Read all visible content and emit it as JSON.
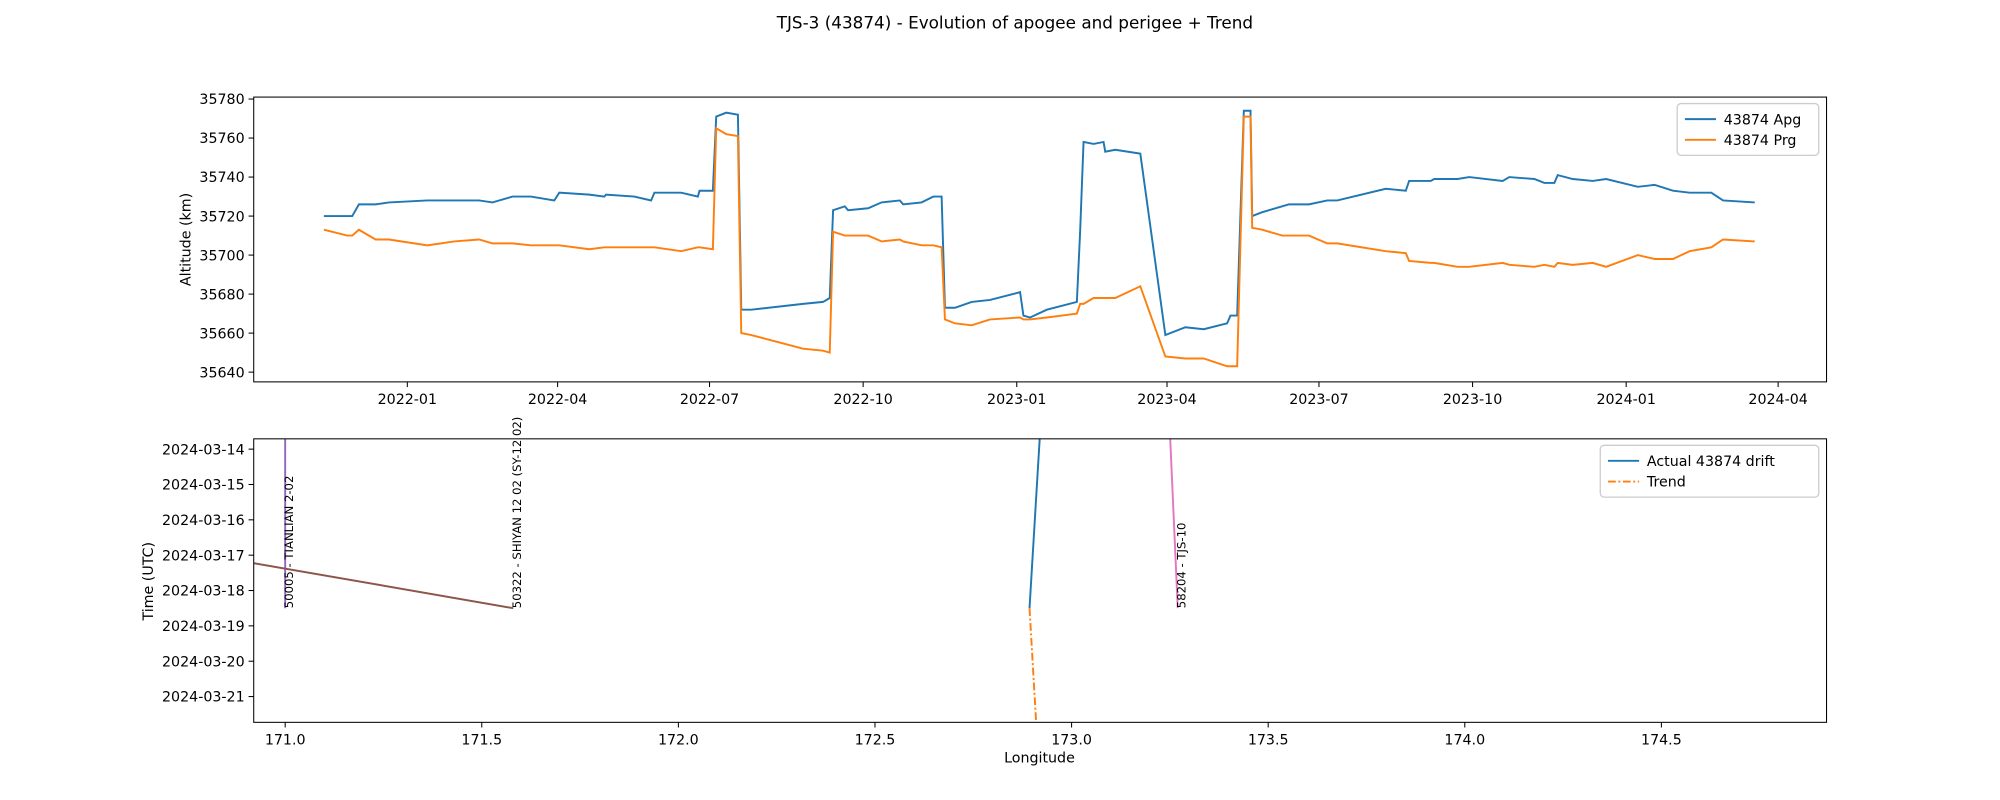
{
  "chart_data": [
    {
      "type": "line",
      "title": "TJS-3 (43874) - Evolution of apogee and perigee + Trend",
      "ylabel": "Altitude (km)",
      "xlim": [
        "2021-10-01",
        "2024-04-30"
      ],
      "ylim": [
        35635,
        35781
      ],
      "yticks": [
        35640,
        35660,
        35680,
        35700,
        35720,
        35740,
        35760,
        35780
      ],
      "xticks": [
        {
          "value": "2022-01-01",
          "label": "2022-01"
        },
        {
          "value": "2022-04-01",
          "label": "2022-04"
        },
        {
          "value": "2022-07-01",
          "label": "2022-07"
        },
        {
          "value": "2022-10-01",
          "label": "2022-10"
        },
        {
          "value": "2023-01-01",
          "label": "2023-01"
        },
        {
          "value": "2023-04-01",
          "label": "2023-04"
        },
        {
          "value": "2023-07-01",
          "label": "2023-07"
        },
        {
          "value": "2023-10-01",
          "label": "2023-10"
        },
        {
          "value": "2024-01-01",
          "label": "2024-01"
        },
        {
          "value": "2024-04-01",
          "label": "2024-04"
        }
      ],
      "legend": "upper right",
      "x": [
        "2021-11-12",
        "2021-11-26",
        "2021-11-29",
        "2021-12-03",
        "2021-12-13",
        "2021-12-21",
        "2022-01-13",
        "2022-01-29",
        "2022-02-13",
        "2022-02-21",
        "2022-03-05",
        "2022-03-16",
        "2022-03-30",
        "2022-04-02",
        "2022-04-20",
        "2022-04-29",
        "2022-04-30",
        "2022-05-17",
        "2022-05-27",
        "2022-05-29",
        "2022-06-14",
        "2022-06-24",
        "2022-06-25",
        "2022-07-03",
        "2022-07-05",
        "2022-07-11",
        "2022-07-18",
        "2022-07-20",
        "2022-07-26",
        "2022-08-26",
        "2022-09-07",
        "2022-09-11",
        "2022-09-13",
        "2022-09-20",
        "2022-09-22",
        "2022-10-04",
        "2022-10-12",
        "2022-10-23",
        "2022-10-25",
        "2022-11-05",
        "2022-11-12",
        "2022-11-17",
        "2022-11-19",
        "2022-11-25",
        "2022-12-05",
        "2022-12-16",
        "2023-01-03",
        "2023-01-05",
        "2023-01-09",
        "2023-01-19",
        "2023-01-28",
        "2023-02-06",
        "2023-02-08",
        "2023-02-10",
        "2023-02-16",
        "2023-02-22",
        "2023-02-23",
        "2023-03-01",
        "2023-03-16",
        "2023-03-31",
        "2023-04-12",
        "2023-04-23",
        "2023-05-07",
        "2023-05-09",
        "2023-05-13",
        "2023-05-17",
        "2023-05-21",
        "2023-05-22",
        "2023-05-28",
        "2023-06-09",
        "2023-06-13",
        "2023-06-25",
        "2023-07-06",
        "2023-07-12",
        "2023-08-10",
        "2023-08-22",
        "2023-08-24",
        "2023-09-06",
        "2023-09-08",
        "2023-09-22",
        "2023-09-29",
        "2023-10-19",
        "2023-10-23",
        "2023-11-07",
        "2023-11-13",
        "2023-11-19",
        "2023-11-21",
        "2023-11-30",
        "2023-12-12",
        "2023-12-20",
        "2024-01-08",
        "2024-01-18",
        "2024-01-29",
        "2024-02-08",
        "2024-02-21",
        "2024-02-28",
        "2024-03-18"
      ],
      "series": [
        {
          "name": "43874 Apg",
          "color": "#1f77b4",
          "values": [
            35720,
            35720,
            35720,
            35726,
            35726,
            35727,
            35728,
            35728,
            35728,
            35727,
            35730,
            35730,
            35728,
            35732,
            35731,
            35730,
            35731,
            35730,
            35728,
            35732,
            35732,
            35730,
            35733,
            35733,
            35771,
            35773,
            35772,
            35672,
            35672,
            35675,
            35676,
            35678,
            35723,
            35725,
            35723,
            35724,
            35727,
            35728,
            35726,
            35727,
            35730,
            35730,
            35673,
            35673,
            35676,
            35677,
            35681,
            35669,
            35668,
            35672,
            35674,
            35676,
            35713,
            35758,
            35757,
            35758,
            35753,
            35754,
            35752,
            35659,
            35663,
            35662,
            35665,
            35669,
            35669,
            35774,
            35774,
            35720,
            35722,
            35725,
            35726,
            35726,
            35728,
            35728,
            35734,
            35733,
            35738,
            35738,
            35739,
            35739,
            35740,
            35738,
            35740,
            35739,
            35737,
            35737,
            35741,
            35739,
            35738,
            35739,
            35735,
            35736,
            35733,
            35732,
            35732,
            35728,
            35727
          ]
        },
        {
          "name": "43874 Prg",
          "color": "#ff7f0e",
          "values": [
            35713,
            35710,
            35710,
            35713,
            35708,
            35708,
            35705,
            35707,
            35708,
            35706,
            35706,
            35705,
            35705,
            35705,
            35703,
            35704,
            35704,
            35704,
            35704,
            35704,
            35702,
            35704,
            35704,
            35703,
            35765,
            35762,
            35761,
            35660,
            35659,
            35652,
            35651,
            35650,
            35712,
            35710,
            35710,
            35710,
            35707,
            35708,
            35707,
            35705,
            35705,
            35704,
            35667,
            35665,
            35664,
            35667,
            35668,
            35667,
            35667,
            35668,
            35669,
            35670,
            35675,
            35675,
            35678,
            35678,
            35678,
            35678,
            35684,
            35648,
            35647,
            35647,
            35643,
            35643,
            35643,
            35771,
            35771,
            35714,
            35713,
            35710,
            35710,
            35710,
            35706,
            35706,
            35702,
            35701,
            35697,
            35696,
            35696,
            35694,
            35694,
            35696,
            35695,
            35694,
            35695,
            35694,
            35696,
            35695,
            35696,
            35694,
            35700,
            35698,
            35698,
            35702,
            35704,
            35708,
            35707
          ]
        }
      ]
    },
    {
      "type": "line",
      "xlabel": "Longitude",
      "ylabel": "Time (UTC)",
      "xlim": [
        170.92,
        174.92
      ],
      "ylim": [
        "2024-03-21T17:30",
        "2024-03-13T17:00"
      ],
      "xticks": [
        {
          "value": 171,
          "label": "171.0"
        },
        171.5,
        {
          "value": 172,
          "label": "172.0"
        },
        172.5,
        {
          "value": 173,
          "label": "173.0"
        },
        173.5,
        {
          "value": 174,
          "label": "174.0"
        },
        174.5
      ],
      "yticks": [
        "2024-03-14",
        "2024-03-15",
        "2024-03-16",
        "2024-03-17",
        "2024-03-18",
        "2024-03-19",
        "2024-03-20",
        "2024-03-21"
      ],
      "legend": "upper right",
      "series": [
        {
          "name": "Actual 43874 drift",
          "color": "#1f77b4",
          "linestyle": "solid",
          "x": [
            172.92,
            172.893
          ],
          "values": [
            "2024-03-13T12:00",
            "2024-03-18T12:00"
          ]
        },
        {
          "name": "Trend",
          "color": "#ff7f0e",
          "linestyle": "dashdot",
          "x": [
            172.893,
            172.91
          ],
          "values": [
            "2024-03-18T12:00",
            "2024-03-21T18:00"
          ]
        }
      ],
      "tracks": [
        {
          "label": "50005 - TIANLIAN 2-02",
          "color": "#9467bd",
          "x": [
            171.0,
            171.0
          ],
          "values": [
            "2024-03-13T12:00",
            "2024-03-18T12:00"
          ]
        },
        {
          "label": "50322 - SHIYAN 12 02 (SY-12 02)",
          "color": "#8c564b",
          "x": [
            170.9,
            171.58
          ],
          "values": [
            "2024-03-17T04:30",
            "2024-03-18T12:00"
          ]
        },
        {
          "label": "58204 - TJS-10",
          "color": "#e377c2",
          "x": [
            173.25,
            173.27
          ],
          "values": [
            "2024-03-13T12:00",
            "2024-03-18T12:00"
          ]
        }
      ]
    }
  ]
}
